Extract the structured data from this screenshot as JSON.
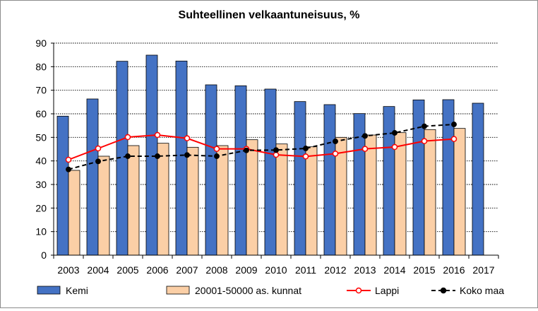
{
  "chart_data": {
    "type": "bar",
    "title": "Suhteellinen velkaantuneisuus, %",
    "xlabel": "",
    "ylabel": "",
    "ylim": [
      0,
      90
    ],
    "yticks": [
      0,
      10,
      20,
      30,
      40,
      50,
      60,
      70,
      80,
      90
    ],
    "grid": true,
    "legend_position": "bottom",
    "categories": [
      "2003",
      "2004",
      "2005",
      "2006",
      "2007",
      "2008",
      "2009",
      "2010",
      "2011",
      "2012",
      "2013",
      "2014",
      "2015",
      "2016",
      "2017"
    ],
    "series": [
      {
        "name": "Kemi",
        "kind": "bar",
        "color": "#4472c4",
        "values": [
          59,
          66.3,
          82.3,
          84.9,
          82.4,
          72.3,
          71.9,
          70.5,
          65.2,
          63.9,
          60.1,
          63.1,
          65.9,
          66,
          64.5
        ]
      },
      {
        "name": "20001-50000 as. kunnat",
        "kind": "bar",
        "color": "#fbcfa6",
        "values": [
          36,
          42,
          46.5,
          47.5,
          45.8,
          46.5,
          49,
          47.2,
          46,
          50,
          51,
          52,
          53.3,
          53.8,
          null
        ]
      },
      {
        "name": "Lappi",
        "kind": "line",
        "color": "#ff0000",
        "values": [
          40.5,
          45.3,
          50.1,
          51,
          49.6,
          45.1,
          45.1,
          42.6,
          41.9,
          43.1,
          45.1,
          45.9,
          48.4,
          49.3,
          null
        ]
      },
      {
        "name": "Koko maa",
        "kind": "line",
        "color": "#000000",
        "values": [
          36.4,
          39.8,
          42,
          42,
          42.5,
          42,
          44.5,
          44.6,
          45.3,
          48.3,
          50.6,
          51.9,
          54.7,
          55.5,
          null
        ]
      }
    ]
  }
}
